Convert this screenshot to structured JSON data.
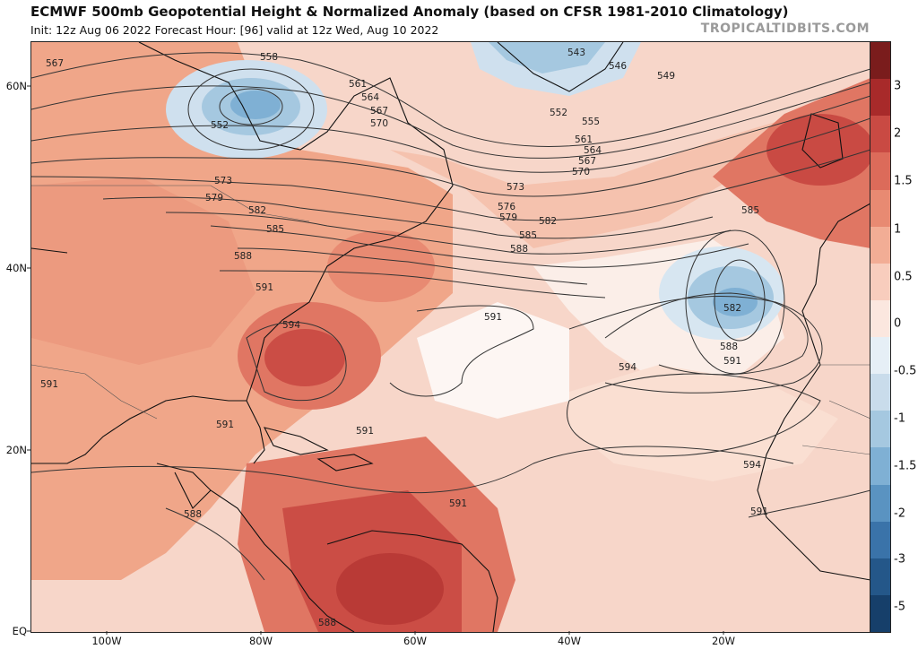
{
  "title": "ECMWF 500mb Geopotential Height & Normalized Anomaly (based on CFSR 1981-2010 Climatology)",
  "subtitle": "Init: 12z Aug 06 2022   Forecast Hour: [96]   valid at 12z Wed, Aug 10 2022",
  "brand": "TROPICALTIDBITS.COM",
  "lat_labels": [
    "60N",
    "40N",
    "20N",
    "EQ"
  ],
  "lon_labels": [
    "100W",
    "80W",
    "60W",
    "40W",
    "20W"
  ],
  "colorbar": {
    "labels": [
      "3",
      "2",
      "1.5",
      "1",
      "0.5",
      "0",
      "-0.5",
      "-1",
      "-1.5",
      "-2",
      "-3",
      "-5"
    ],
    "colors_positive": [
      "#7a1c1c",
      "#a82a2a",
      "#c94a43",
      "#dc6b5a",
      "#e88a72",
      "#f2ad95",
      "#f8cdbd",
      "#fbe7df"
    ],
    "colors_negative": [
      "#e6eff6",
      "#c9dceb",
      "#a5c8e0",
      "#7fb0d4",
      "#5a93c1",
      "#3a73a9",
      "#245789",
      "#163f6a"
    ]
  },
  "contour_labels": [
    "567",
    "558",
    "552",
    "561",
    "564",
    "567",
    "570",
    "573",
    "579",
    "582",
    "585",
    "588",
    "591",
    "594",
    "591",
    "591",
    "591",
    "591",
    "588",
    "588",
    "543",
    "546",
    "549",
    "552",
    "555",
    "561",
    "564",
    "567",
    "570",
    "573",
    "576",
    "579",
    "582",
    "585",
    "588",
    "585",
    "582",
    "588",
    "591",
    "594",
    "591",
    "594",
    "591"
  ]
}
